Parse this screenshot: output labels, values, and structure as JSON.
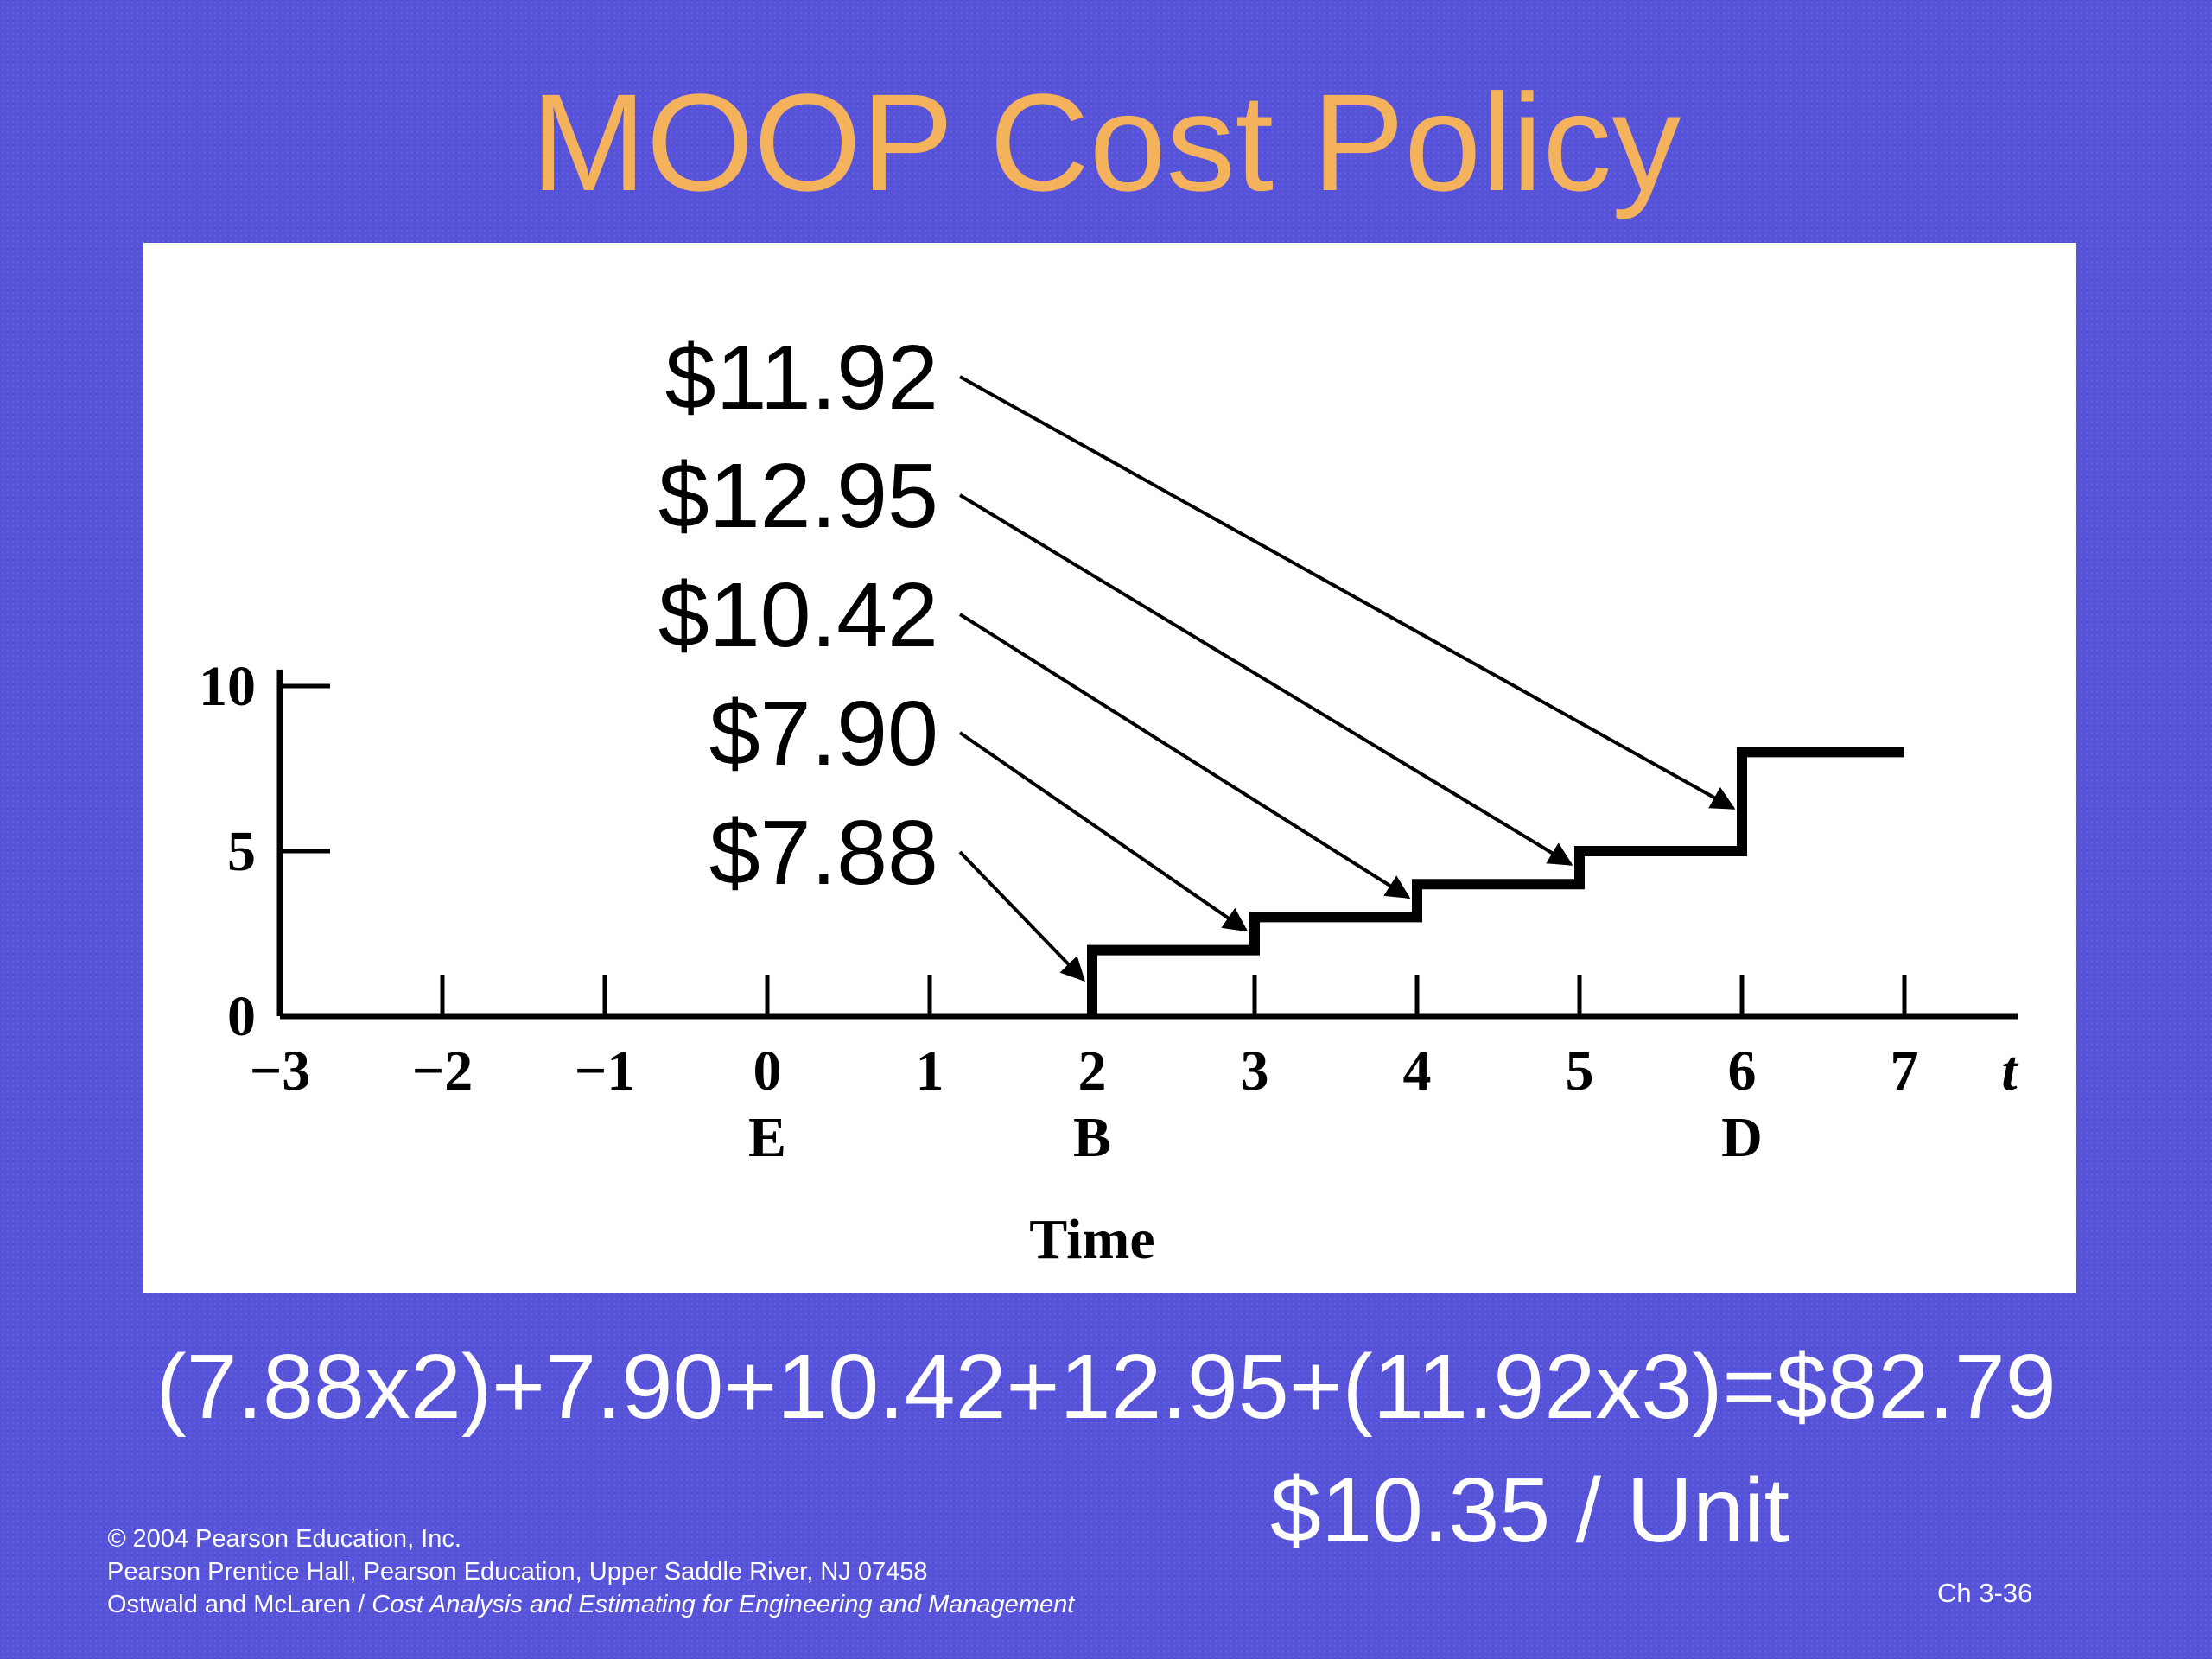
{
  "slide": {
    "title": "MOOP Cost Policy",
    "equation": "(7.88x2)+7.90+10.42+12.95+(11.92x3)=$82.79",
    "per_unit": "$10.35 / Unit",
    "footer": {
      "copyright_symbol": "©",
      "copyright_text": "2004 Pearson Education, Inc.",
      "publisher": "Pearson Prentice Hall, Pearson Education, Upper Saddle River, NJ 07458",
      "authors": "Ostwald and McLaren / ",
      "book_title": "Cost Analysis and Estimating for Engineering and Management"
    },
    "slide_number": "Ch 3-36"
  },
  "chart_data": {
    "type": "line",
    "step": true,
    "xlabel": "Time",
    "x_axis_symbol": "t",
    "xlim": [
      -3,
      7.7
    ],
    "ylim": [
      0,
      10.5
    ],
    "x_ticks": [
      -3,
      -2,
      -1,
      0,
      1,
      2,
      3,
      4,
      5,
      6,
      7
    ],
    "x_tick_labels": [
      "−3",
      "−2",
      "−1",
      "0",
      "1",
      "2",
      "3",
      "4",
      "5",
      "6",
      "7"
    ],
    "y_ticks": [
      0,
      5,
      10
    ],
    "y_tick_labels": [
      "0",
      "5",
      "10"
    ],
    "point_labels": [
      {
        "x": 0,
        "label": "E"
      },
      {
        "x": 2,
        "label": "B"
      },
      {
        "x": 6,
        "label": "D"
      }
    ],
    "series": [
      {
        "x": [
          -3,
          2,
          2,
          3,
          3,
          4,
          4,
          5,
          5,
          6,
          6,
          7
        ],
        "y": [
          0,
          0,
          2,
          2,
          3,
          3,
          4,
          4,
          5,
          5,
          8,
          8
        ]
      }
    ],
    "annotations": [
      {
        "text": "$11.92",
        "x": 6,
        "y": 6.3
      },
      {
        "text": "$12.95",
        "x": 5,
        "y": 4.6
      },
      {
        "text": "$10.42",
        "x": 4,
        "y": 3.6
      },
      {
        "text": "$7.90",
        "x": 3,
        "y": 2.6
      },
      {
        "text": "$7.88",
        "x": 2,
        "y": 1.1
      }
    ]
  }
}
